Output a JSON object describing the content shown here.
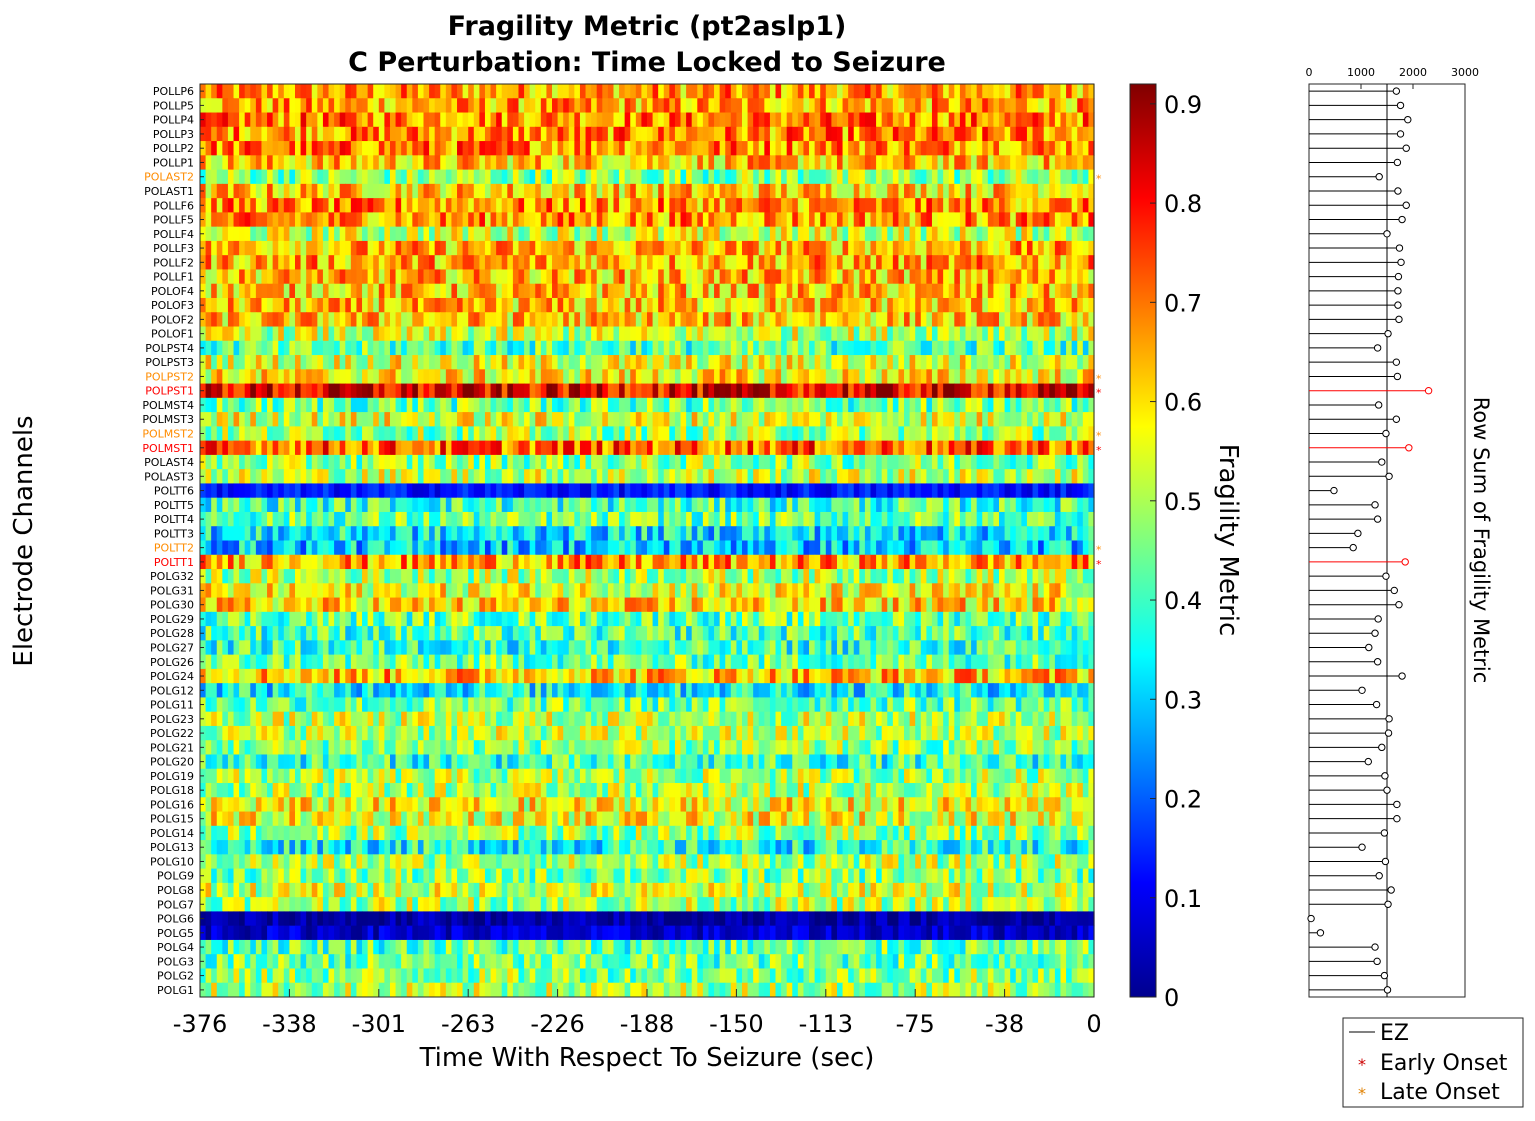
{
  "chart_data": [
    {
      "type": "heatmap",
      "title": "Fragility Metric (pt2aslp1)",
      "subtitle": "C Perturbation:  Time Locked to Seizure",
      "xlabel": "Time With Respect To Seizure (sec)",
      "ylabel": "Electrode Channels",
      "x_ticks": [
        "-376",
        "-338",
        "-301",
        "-263",
        "-226",
        "-188",
        "-150",
        "-113",
        "-75",
        "-38",
        "0"
      ],
      "xlim": [
        -376,
        0
      ],
      "colormap": "jet",
      "colorbar": {
        "label": "Fragility Metric",
        "ticks": [
          "0",
          "0.1",
          "0.2",
          "0.3",
          "0.4",
          "0.5",
          "0.6",
          "0.7",
          "0.8",
          "0.9"
        ],
        "range": [
          0,
          0.92
        ]
      },
      "label_colors": {
        "normal": "#000000",
        "early": "#ff0000",
        "late": "#ff8c00"
      },
      "channels": [
        {
          "name": "POLLP6",
          "mean": 0.66,
          "onset": ""
        },
        {
          "name": "POLLP5",
          "mean": 0.65,
          "onset": ""
        },
        {
          "name": "POLLP4",
          "mean": 0.69,
          "onset": ""
        },
        {
          "name": "POLLP3",
          "mean": 0.68,
          "onset": ""
        },
        {
          "name": "POLLP2",
          "mean": 0.69,
          "onset": ""
        },
        {
          "name": "POLLP1",
          "mean": 0.62,
          "onset": ""
        },
        {
          "name": "POLAST2",
          "mean": 0.47,
          "onset": "late"
        },
        {
          "name": "POLAST1",
          "mean": 0.62,
          "onset": ""
        },
        {
          "name": "POLLF6",
          "mean": 0.67,
          "onset": ""
        },
        {
          "name": "POLLF5",
          "mean": 0.67,
          "onset": ""
        },
        {
          "name": "POLLF4",
          "mean": 0.53,
          "onset": ""
        },
        {
          "name": "POLLF3",
          "mean": 0.64,
          "onset": ""
        },
        {
          "name": "POLLF2",
          "mean": 0.65,
          "onset": ""
        },
        {
          "name": "POLLF1",
          "mean": 0.63,
          "onset": ""
        },
        {
          "name": "POLOF4",
          "mean": 0.62,
          "onset": ""
        },
        {
          "name": "POLOF3",
          "mean": 0.62,
          "onset": ""
        },
        {
          "name": "POLOF2",
          "mean": 0.62,
          "onset": ""
        },
        {
          "name": "POLOF1",
          "mean": 0.52,
          "onset": ""
        },
        {
          "name": "POLPST4",
          "mean": 0.42,
          "onset": ""
        },
        {
          "name": "POLPST3",
          "mean": 0.55,
          "onset": ""
        },
        {
          "name": "POLPST2",
          "mean": 0.58,
          "onset": "late"
        },
        {
          "name": "POLPST1",
          "mean": 0.82,
          "onset": "early"
        },
        {
          "name": "POLMST4",
          "mean": 0.44,
          "onset": ""
        },
        {
          "name": "POLMST3",
          "mean": 0.55,
          "onset": ""
        },
        {
          "name": "POLMST2",
          "mean": 0.48,
          "onset": "late"
        },
        {
          "name": "POLMST1",
          "mean": 0.72,
          "onset": "early"
        },
        {
          "name": "POLAST4",
          "mean": 0.47,
          "onset": ""
        },
        {
          "name": "POLAST3",
          "mean": 0.52,
          "onset": ""
        },
        {
          "name": "POLTT6",
          "mean": 0.13,
          "onset": ""
        },
        {
          "name": "POLTT5",
          "mean": 0.4,
          "onset": ""
        },
        {
          "name": "POLTT4",
          "mean": 0.44,
          "onset": ""
        },
        {
          "name": "POLTT3",
          "mean": 0.33,
          "onset": ""
        },
        {
          "name": "POLTT2",
          "mean": 0.3,
          "onset": "late"
        },
        {
          "name": "POLTT1",
          "mean": 0.66,
          "onset": "early"
        },
        {
          "name": "POLG32",
          "mean": 0.5,
          "onset": ""
        },
        {
          "name": "POLG31",
          "mean": 0.56,
          "onset": ""
        },
        {
          "name": "POLG30",
          "mean": 0.6,
          "onset": ""
        },
        {
          "name": "POLG29",
          "mean": 0.44,
          "onset": ""
        },
        {
          "name": "POLG28",
          "mean": 0.41,
          "onset": ""
        },
        {
          "name": "POLG27",
          "mean": 0.39,
          "onset": ""
        },
        {
          "name": "POLG26",
          "mean": 0.44,
          "onset": ""
        },
        {
          "name": "POLG24",
          "mean": 0.64,
          "onset": ""
        },
        {
          "name": "POLG12",
          "mean": 0.35,
          "onset": ""
        },
        {
          "name": "POLG11",
          "mean": 0.44,
          "onset": ""
        },
        {
          "name": "POLG23",
          "mean": 0.51,
          "onset": ""
        },
        {
          "name": "POLG22",
          "mean": 0.51,
          "onset": ""
        },
        {
          "name": "POLG21",
          "mean": 0.47,
          "onset": ""
        },
        {
          "name": "POLG20",
          "mean": 0.39,
          "onset": ""
        },
        {
          "name": "POLG19",
          "mean": 0.49,
          "onset": ""
        },
        {
          "name": "POLG18",
          "mean": 0.5,
          "onset": ""
        },
        {
          "name": "POLG16",
          "mean": 0.57,
          "onset": ""
        },
        {
          "name": "POLG15",
          "mean": 0.56,
          "onset": ""
        },
        {
          "name": "POLG14",
          "mean": 0.48,
          "onset": ""
        },
        {
          "name": "POLG13",
          "mean": 0.36,
          "onset": ""
        },
        {
          "name": "POLG10",
          "mean": 0.5,
          "onset": ""
        },
        {
          "name": "POLG9",
          "mean": 0.46,
          "onset": ""
        },
        {
          "name": "POLG8",
          "mean": 0.53,
          "onset": ""
        },
        {
          "name": "POLG7",
          "mean": 0.5,
          "onset": ""
        },
        {
          "name": "POLG6",
          "mean": 0.03,
          "onset": ""
        },
        {
          "name": "POLG5",
          "mean": 0.07,
          "onset": ""
        },
        {
          "name": "POLG4",
          "mean": 0.43,
          "onset": ""
        },
        {
          "name": "POLG3",
          "mean": 0.44,
          "onset": ""
        },
        {
          "name": "POLG2",
          "mean": 0.47,
          "onset": ""
        },
        {
          "name": "POLG1",
          "mean": 0.5,
          "onset": ""
        }
      ]
    },
    {
      "type": "stem",
      "ylabel": "Row Sum of Fragility Metric",
      "x_ticks": [
        "0",
        "1000",
        "2000",
        "3000"
      ],
      "xlim": [
        0,
        3000
      ],
      "reference_line": 1500,
      "values": [
        1680,
        1760,
        1900,
        1760,
        1870,
        1700,
        1350,
        1710,
        1870,
        1790,
        1500,
        1740,
        1770,
        1720,
        1710,
        1710,
        1730,
        1520,
        1320,
        1680,
        1700,
        2300,
        1340,
        1680,
        1480,
        1920,
        1400,
        1540,
        480,
        1270,
        1320,
        940,
        850,
        1850,
        1480,
        1640,
        1730,
        1330,
        1270,
        1150,
        1320,
        1790,
        1020,
        1300,
        1540,
        1530,
        1400,
        1140,
        1460,
        1500,
        1690,
        1690,
        1450,
        1020,
        1470,
        1350,
        1580,
        1520,
        40,
        220,
        1270,
        1310,
        1450,
        1510
      ],
      "highlight_rows": [
        21,
        25,
        33
      ],
      "colors": {
        "normal": "#000000",
        "highlight": "#ff0000"
      }
    }
  ],
  "legend": {
    "placement": "bottom-right",
    "items": [
      {
        "label": "EZ",
        "symbol": "line",
        "color": "#000000"
      },
      {
        "label": "Early Onset",
        "symbol": "*",
        "color": "#cc0000"
      },
      {
        "label": "Late Onset",
        "symbol": "*",
        "color": "#e08000"
      }
    ]
  }
}
